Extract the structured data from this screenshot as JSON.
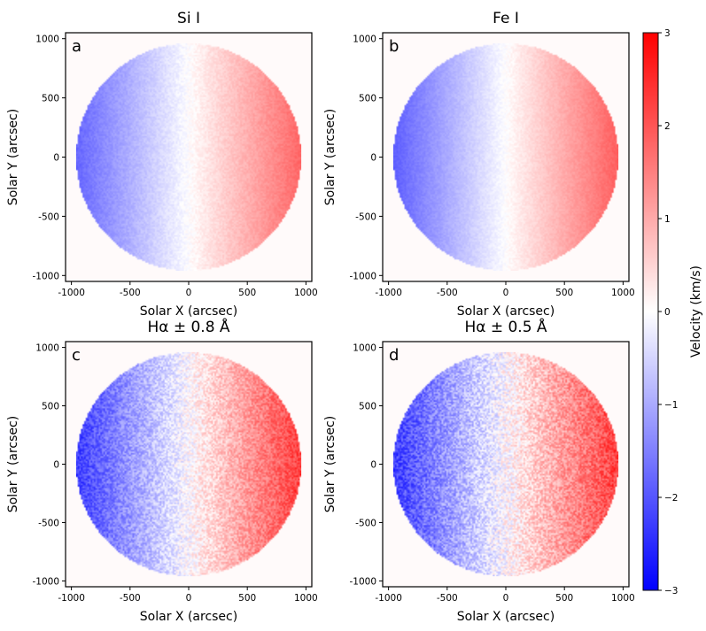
{
  "chart_data": [
    {
      "type": "heatmap",
      "id": "a",
      "panel_label": "a",
      "title": "Si I",
      "xlabel": "Solar X (arcsec)",
      "ylabel": "Solar Y (arcsec)",
      "xlim": [
        -1050,
        1050
      ],
      "ylim": [
        -1050,
        1050
      ],
      "xticks": [
        -1000,
        -500,
        0,
        500,
        1000
      ],
      "yticks": [
        -1000,
        -500,
        0,
        500,
        1000
      ],
      "disk_radius": 960,
      "velocity_range": [
        -1.8,
        1.8
      ],
      "noise": 0.15,
      "description": "Solar disk Doppler velocity map: blueshift on east (left) limb, redshift on west (right) limb"
    },
    {
      "type": "heatmap",
      "id": "b",
      "panel_label": "b",
      "title": "Fe I",
      "xlabel": "Solar X (arcsec)",
      "ylabel": "Solar Y (arcsec)",
      "xlim": [
        -1050,
        1050
      ],
      "ylim": [
        -1050,
        1050
      ],
      "xticks": [
        -1000,
        -500,
        0,
        500,
        1000
      ],
      "yticks": [
        -1000,
        -500,
        0,
        500,
        1000
      ],
      "disk_radius": 960,
      "velocity_range": [
        -1.9,
        1.9
      ],
      "noise": 0.12,
      "description": "Solar disk Doppler velocity map: blueshift on east (left) limb, redshift on west (right) limb"
    },
    {
      "type": "heatmap",
      "id": "c",
      "panel_label": "c",
      "title": "Hα ± 0.8 Å",
      "xlabel": "Solar X (arcsec)",
      "ylabel": "Solar Y (arcsec)",
      "xlim": [
        -1050,
        1050
      ],
      "ylim": [
        -1050,
        1050
      ],
      "xticks": [
        -1000,
        -500,
        0,
        500,
        1000
      ],
      "yticks": [
        -1000,
        -500,
        0,
        500,
        1000
      ],
      "disk_radius": 960,
      "velocity_range": [
        -2.3,
        2.3
      ],
      "noise": 0.5,
      "description": "Solar disk Doppler velocity map with granular texture"
    },
    {
      "type": "heatmap",
      "id": "d",
      "panel_label": "d",
      "title": "Hα ± 0.5 Å",
      "xlabel": "Solar X (arcsec)",
      "ylabel": "Solar Y (arcsec)",
      "xlim": [
        -1050,
        1050
      ],
      "ylim": [
        -1050,
        1050
      ],
      "xticks": [
        -1000,
        -500,
        0,
        500,
        1000
      ],
      "yticks": [
        -1000,
        -500,
        0,
        500,
        1000
      ],
      "disk_radius": 960,
      "velocity_range": [
        -2.3,
        2.3
      ],
      "noise": 0.6,
      "description": "Solar disk Doppler velocity map with granular texture"
    }
  ],
  "colorbar": {
    "label": "Velocity (km/s)",
    "colormap": "bwr",
    "range": [
      -3,
      3
    ],
    "ticks": [
      3,
      2,
      1,
      0,
      -1,
      -2,
      -3
    ],
    "tick_labels": [
      "3",
      "2",
      "1",
      "0",
      "−1",
      "−2",
      "−3"
    ],
    "colors": {
      "min": "#0000ff",
      "mid": "#ffffff",
      "max": "#ff0000"
    }
  }
}
